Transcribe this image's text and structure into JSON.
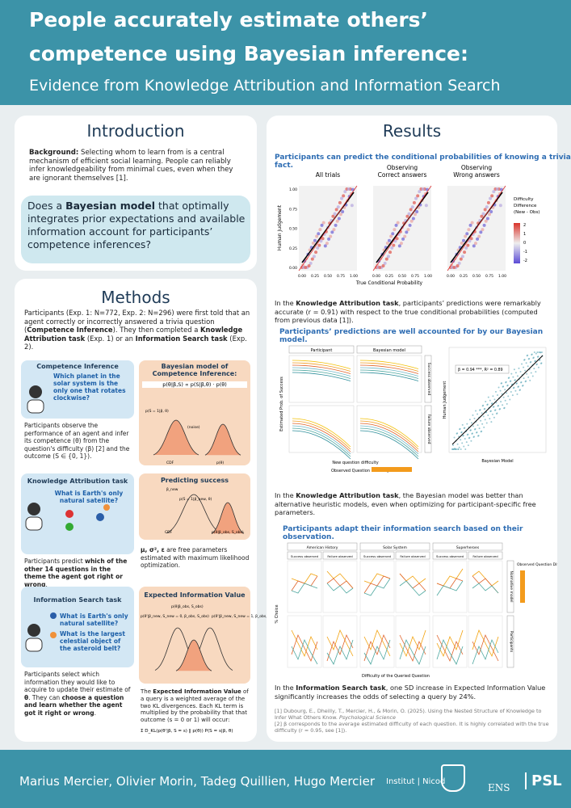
{
  "header": {
    "title_line1": "People accurately estimate others’",
    "title_line2": "competence using Bayesian inference:",
    "subtitle": "Evidence from Knowledge Attribution and Information Search"
  },
  "introduction": {
    "heading": "Introduction",
    "background": {
      "label": "Background:",
      "text": " Selecting whom to learn from is a central mechanism of efficient social learning. People can reliably infer knowledgeability from minimal cues, even when they are ignorant themselves [1]."
    },
    "question": [
      "Does a ",
      "Bayesian model",
      " that optimally integrates prior expectations and available information account for participants’ competence inferences?"
    ]
  },
  "methods": {
    "heading": "Methods",
    "intro": [
      "Participants (Exp. 1: N=772, Exp. 2: N=296) were first told that an agent correctly or incorrectly answered a trivia question (",
      "Competence Inference",
      "). They then completed a ",
      "Knowledge Attribution task",
      " (Exp. 1) or an ",
      "Information Search task",
      " (Exp. 2)."
    ],
    "competence": {
      "title": "Competence Inference",
      "question": "Which planet in the solar system is the only one that rotates clockwise?",
      "text": "Participants observe the performance of an agent and infer its competence (θ) from the question's difficulty (β) [2] and the outcome (S ∈ {0, 1})."
    },
    "bayesian": {
      "title": "Bayesian model of Competence Inference:",
      "formula": "p(θ|β,S) ∝ p(S|β,θ) · p(θ)",
      "labels": [
        "p(S = 1|β, θ)",
        "CDF",
        "(noise)",
        "p(θ)"
      ]
    },
    "knowledge": {
      "title": "Knowledge Attribution task",
      "question": "What is Earth's only natural satellite?",
      "text": [
        "Participants predict ",
        "which of the other 14 questions in the theme the agent got right or wrong",
        "."
      ]
    },
    "predicting": {
      "title": "Predicting success",
      "labels": [
        "β_new",
        "p(S = 1|β_new, θ)",
        "CDF",
        "p(θ|β_obs, S_obs)"
      ],
      "text": [
        "μ, σ², ε",
        " are free parameters estimated with maximum likelihood optimization."
      ]
    },
    "search": {
      "title": "Information Search task",
      "questions": [
        "What is Earth's only natural satellite?",
        "What is the largest celestial object of the asteroid belt?"
      ],
      "text": [
        "Participants select which information they would like to acquire to update their estimate of ",
        "θ",
        ". They can ",
        "choose a question and learn whether the agent got it right or wrong",
        "."
      ]
    },
    "eiv": {
      "title": "Expected Information Value",
      "labels": [
        "p(θ'|β_new, S_new = 0, β_obs, S_obs)",
        "p(θ|β_obs, S_obs)",
        "p(θ'|β_new, S_new = 1, β_obs, S_obs)"
      ],
      "text": [
        "The ",
        "Expected Information Value",
        " of a query is a weighted average of the two KL divergences. Each KL term is multiplied by the probability that that outcome (s = 0 or 1) will occur:"
      ],
      "formula": "Σ D_KL(p(θ'|β, S = s) ‖ p(θ)) P(S = s|β, θ)"
    }
  },
  "results": {
    "heading": "Results",
    "fig1": {
      "title": "Participants can predict the conditional probabilities of knowing a trivia fact.",
      "panels": [
        [
          "All trials"
        ],
        [
          "Observing",
          "Correct answers"
        ],
        [
          "Observing",
          "Wrong answers"
        ]
      ],
      "y_label": "Human Judgement",
      "x_label": "True Conditional Probability",
      "ticks": [
        "0.00",
        "0.25",
        "0.50",
        "0.75",
        "1.00"
      ],
      "legend_title": [
        "Difficulty",
        "Difference",
        "(New - Obs)"
      ],
      "legend_ticks": [
        "2",
        "1",
        "0",
        "-1",
        "-2"
      ]
    },
    "caption1": [
      "In the ",
      "Knowledge Attribution task",
      ", participants’ predictions were remarkably accurate (r = 0.91) with respect to the true conditional probabilities (computed from previous data [1])."
    ],
    "fig2": {
      "title": "Participants’ predictions are well accounted for by our Bayesian model.",
      "facets": [
        "Participant",
        "Bayesian model"
      ],
      "rows": [
        "Success observed",
        "Failure observed"
      ],
      "y_label": "Estimated Prob. of Success",
      "x_label": "New question difficulty",
      "legend": "Observed Question Difficulty",
      "scatter_y": "Human Judgement",
      "scatter_x": "Bayesian Model",
      "annotation": "β = 0.94 ***, R² = 0.89"
    },
    "caption2": [
      "In the ",
      "Knowledge Attribution task",
      ", the Bayesian model was better than alternative heuristic models, even when optimizing for participant-specific free parameters."
    ],
    "fig3": {
      "title": "Participants adapt their information search based on their observation.",
      "themes": [
        "American History",
        "Solar System",
        "Superheroes"
      ],
      "subfacets": [
        "Success observed",
        "Failure observed"
      ],
      "rows": [
        "Normative model",
        "Participants"
      ],
      "y_label": "% Choice",
      "x_label": "Difficulty of the Queried Question",
      "legend": "Observed Question Difficulty"
    },
    "caption3": [
      "In the ",
      "Information Search task",
      ", one SD increase in Expected Information Value significantly increases the odds of selecting a query by 24%."
    ],
    "references": [
      "[1] Dubourg, E., Dheilly, T., Mercier, H., & Morin, O. (2025). Using the Nested Structure of Knowledge to Infer What Others Know. ",
      "Psychological Science",
      "[2] β corresponds to the average estimated difficulty of each question. It is highly correlated with the true difficulty (r = 0.95, see [1])."
    ]
  },
  "footer": {
    "authors": "Marius Mercier, Olivier Morin, Tadeg Quillien, Hugo Mercier",
    "logos": [
      "Institut",
      "Nicod",
      "ENS",
      "PSL"
    ]
  }
}
